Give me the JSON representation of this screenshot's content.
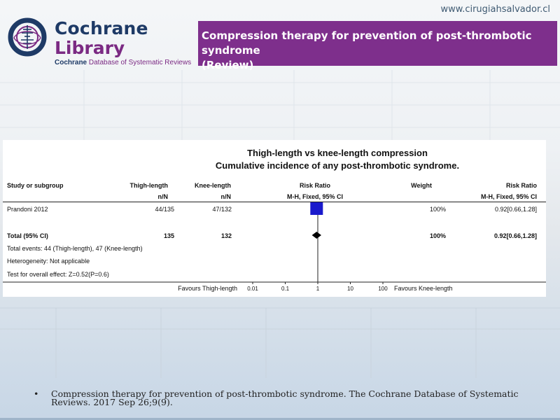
{
  "header": {
    "site_url": "www.cirugiahsalvador.cl",
    "logo": {
      "word1": "Cochrane",
      "word2": "Library",
      "tagline_bold": "Cochrane",
      "tagline_rest": " Database of Systematic Reviews"
    },
    "review_title_line1": "Compression therapy for prevention of post-thrombotic syndrome",
    "review_title_line2": "(Review)"
  },
  "forest_plot": {
    "title_line1": "Thigh-length vs knee-length compression",
    "title_line2": "Cumulative incidence of any post-thrombotic syndrome.",
    "columns": {
      "study": "Study or subgroup",
      "group1": "Thigh-length",
      "group1_sub": "n/N",
      "group2": "Knee-length",
      "group2_sub": "n/N",
      "ratio": "Risk Ratio",
      "ratio_sub": "M-H, Fixed, 95% CI",
      "weight": "Weight",
      "ratio2": "Risk Ratio",
      "ratio2_sub": "M-H, Fixed, 95% CI"
    },
    "study": {
      "name": "Prandoni 2012",
      "group1": "44/135",
      "group2": "47/132",
      "weight": "100%",
      "ci": "0.92[0.66,1.28]",
      "rr": 0.92,
      "lo": 0.66,
      "hi": 1.28
    },
    "total": {
      "label": "Total (95% CI)",
      "group1": "135",
      "group2": "132",
      "weight": "100%",
      "ci": "0.92[0.66,1.28]",
      "rr": 0.92,
      "lo": 0.66,
      "hi": 1.28
    },
    "notes": {
      "events": "Total events: 44 (Thigh-length), 47 (Knee-length)",
      "heterogeneity": "Heterogeneity: Not applicable",
      "overall": "Test for overall effect: Z=0.52(P=0.6)"
    },
    "axis": {
      "ticks": [
        "0.01",
        "0.1",
        "1",
        "10",
        "100"
      ],
      "favours_left": "Favours Thigh-length",
      "favours_right": "Favours Knee-length",
      "scale": "log"
    },
    "colors": {
      "study_box": "#1a1acc",
      "diamond": "#000000"
    }
  },
  "footer": {
    "bullet": "•",
    "citation_line1": "Compression therapy for prevention of post-thrombotic syndrome. The Cochrane Database of Systematic",
    "citation_line2": "Reviews. 2017 Sep 26;9(9)."
  }
}
